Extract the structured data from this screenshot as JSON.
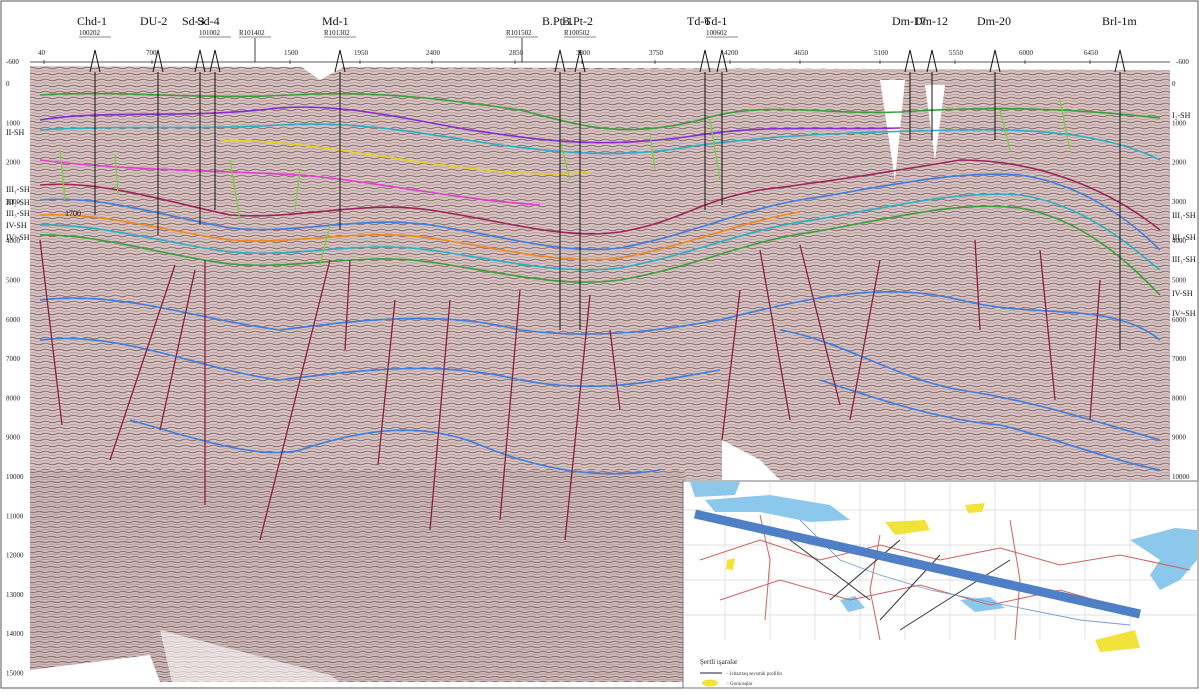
{
  "top_axis": {
    "ticks": [
      "40",
      "700",
      "1500",
      "1950",
      "2400",
      "2850",
      "3300",
      "3750",
      "4200",
      "4650",
      "5100",
      "5550",
      "6000",
      "6450"
    ],
    "start_label": "-600",
    "end_label": "-600"
  },
  "wells": [
    {
      "name": "Chd-1",
      "code": "100202"
    },
    {
      "name": "DU-2",
      "code": ""
    },
    {
      "name": "Sd-3",
      "code": ""
    },
    {
      "name": "Sd-4",
      "code": "101002"
    },
    {
      "name": "",
      "code": "R101402"
    },
    {
      "name": "Md-1",
      "code": "R101302"
    },
    {
      "name": "",
      "code": "R101502"
    },
    {
      "name": "B.Pt-1",
      "code": ""
    },
    {
      "name": "B.Pt-2",
      "code": "R100502"
    },
    {
      "name": "Td-6",
      "code": ""
    },
    {
      "name": "Td-1",
      "code": "100602"
    },
    {
      "name": "Dm-17",
      "code": ""
    },
    {
      "name": "Dm-12",
      "code": ""
    },
    {
      "name": "Dm-20",
      "code": ""
    },
    {
      "name": "Brl-1m",
      "code": ""
    }
  ],
  "left_depth_labels": [
    "0",
    "1000",
    "2000",
    "3000",
    "4000",
    "5000",
    "6000",
    "7000",
    "8000",
    "9000",
    "10000",
    "11000",
    "12000",
    "13000",
    "14000",
    "15000"
  ],
  "right_depth_labels": [
    "0",
    "1000",
    "2000",
    "3000",
    "4000",
    "5000",
    "6000",
    "7000",
    "8000",
    "9000",
    "10000"
  ],
  "left_horizons": [
    "II-SH",
    "III₁-SH",
    "III₂-SH",
    "III₃-SH",
    "IV-SH",
    "IVᵃ-SH"
  ],
  "right_horizons": [
    "I₂-SH",
    "III₁-SH",
    "III₂-SH",
    "III₃-SH",
    "IV-SH",
    "IVᵃ-SH"
  ],
  "annotation_1700": "1700",
  "inset_map": {
    "legend_title": "Şertli işarələr",
    "legend_item_1": "- Icbarrtaq seysmik profilin",
    "legend_item_2": "- Gorucaqlar"
  },
  "colors": {
    "seismic_bg": "#c9b3ad",
    "seismic_line": "#8a6c72",
    "profile_bar": "#4f7fc4",
    "fault": "#8a1f3f",
    "blue_horizon": "#3f7fe0"
  }
}
